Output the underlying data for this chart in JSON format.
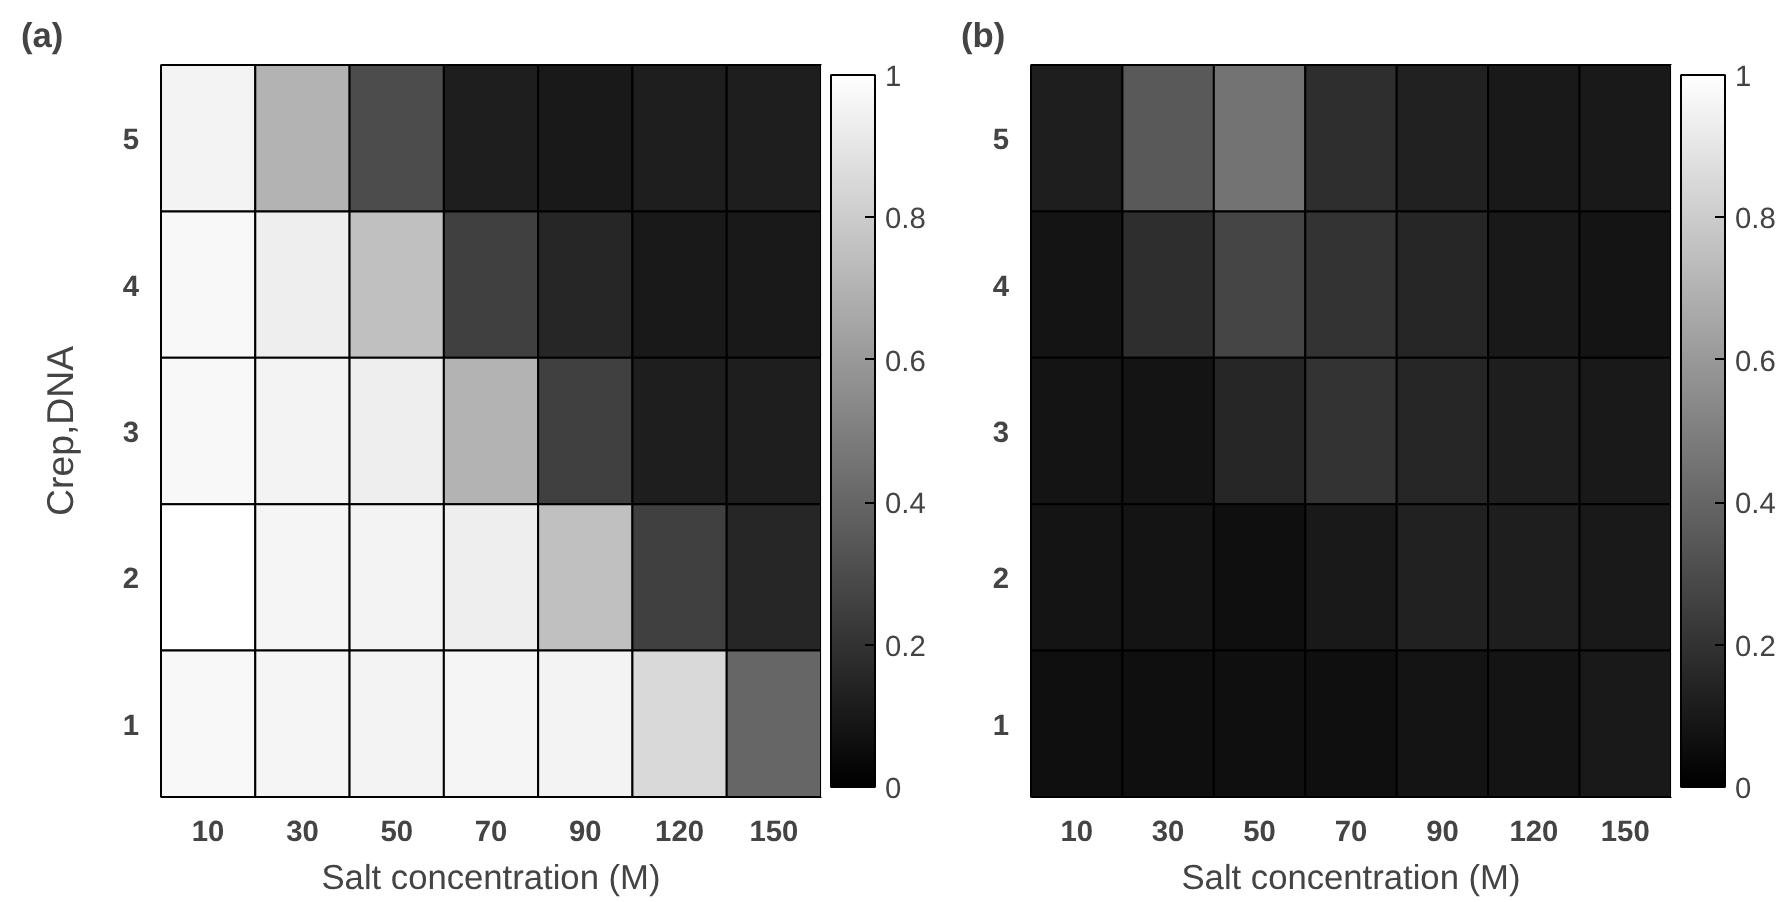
{
  "chart_data": [
    {
      "type": "heatmap",
      "title": "(a)",
      "xlabel": "Salt concentration (M)",
      "ylabel": "Crep,DNA",
      "categories": [
        "10",
        "30",
        "50",
        "70",
        "90",
        "120",
        "150"
      ],
      "y_categories": [
        "5",
        "4",
        "3",
        "2",
        "1"
      ],
      "clim": [
        0,
        1
      ],
      "cticks": [
        0,
        0.2,
        0.4,
        0.6,
        0.8,
        1
      ],
      "cells": [
        [
          0.95,
          0.7,
          0.3,
          0.12,
          0.1,
          0.12,
          0.12
        ],
        [
          0.97,
          0.93,
          0.75,
          0.25,
          0.15,
          0.1,
          0.1
        ],
        [
          0.97,
          0.95,
          0.93,
          0.7,
          0.25,
          0.12,
          0.12
        ],
        [
          1.0,
          0.96,
          0.95,
          0.93,
          0.75,
          0.25,
          0.15
        ],
        [
          0.97,
          0.96,
          0.95,
          0.96,
          0.95,
          0.85,
          0.4
        ]
      ]
    },
    {
      "type": "heatmap",
      "title": "(b)",
      "xlabel": "Salt concentration (M)",
      "categories": [
        "10",
        "30",
        "50",
        "70",
        "90",
        "120",
        "150"
      ],
      "y_categories": [
        "5",
        "4",
        "3",
        "2",
        "1"
      ],
      "clim": [
        0,
        1
      ],
      "cticks": [
        0,
        0.2,
        0.4,
        0.6,
        0.8,
        1
      ],
      "cells": [
        [
          0.12,
          0.35,
          0.45,
          0.18,
          0.13,
          0.1,
          0.1
        ],
        [
          0.08,
          0.18,
          0.27,
          0.2,
          0.15,
          0.1,
          0.08
        ],
        [
          0.08,
          0.08,
          0.15,
          0.2,
          0.15,
          0.12,
          0.1
        ],
        [
          0.08,
          0.08,
          0.06,
          0.1,
          0.13,
          0.12,
          0.1
        ],
        [
          0.06,
          0.06,
          0.06,
          0.06,
          0.08,
          0.08,
          0.1
        ]
      ]
    }
  ]
}
